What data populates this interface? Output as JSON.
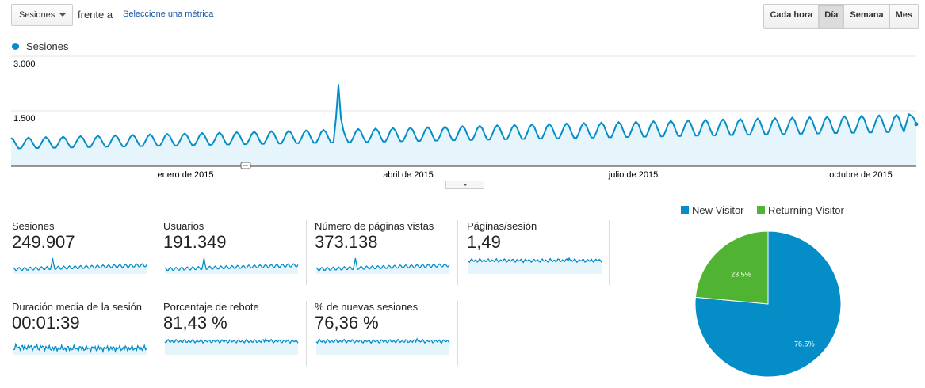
{
  "toolbar": {
    "metric_select": "Sesiones",
    "vs_label": "frente a",
    "pick_metric_link": "Seleccione una métrica",
    "granularity": [
      "Cada hora",
      "Día",
      "Semana",
      "Mes"
    ],
    "granularity_selected": "Día"
  },
  "colors": {
    "accent": "#058dc7",
    "fill": "#e6f4fb",
    "new_visitor": "#058dc7",
    "returning_visitor": "#50b432"
  },
  "chart_data": [
    {
      "type": "area",
      "series": [
        {
          "name": "Sesiones"
        }
      ],
      "yticks": [
        "3.000",
        "1.500"
      ],
      "ylim": [
        0,
        3000
      ],
      "xticks": [
        "enero de 2015",
        "abril de 2015",
        "julio de 2015",
        "octubre de 2015"
      ],
      "x_start": "2014-11-18",
      "x_end": "2015-11-18",
      "base_start": 620,
      "base_end": 1170,
      "weekly_amplitude": 190,
      "spike": {
        "date": "2015-03-30",
        "value": 2220
      },
      "end_values": [
        1190,
        1420,
        1380,
        1310,
        1150
      ],
      "grid": true
    },
    {
      "type": "pie",
      "slices": [
        {
          "name": "New Visitor",
          "value": 76.5,
          "label": "76.5%"
        },
        {
          "name": "Returning Visitor",
          "value": 23.5,
          "label": "23.5%"
        }
      ],
      "legend": "top"
    }
  ],
  "scorecards": [
    {
      "label": "Sesiones",
      "value": "249.907",
      "spark": "weekly-spike"
    },
    {
      "label": "Usuarios",
      "value": "191.349",
      "spark": "weekly-spike"
    },
    {
      "label": "Número de páginas vistas",
      "value": "373.138",
      "spark": "weekly-spike"
    },
    {
      "label": "Páginas/sesión",
      "value": "1,49",
      "spark": "flat-high"
    },
    {
      "label": "Duración media de la sesión",
      "value": "00:01:39",
      "spark": "noisy-low"
    },
    {
      "label": "Porcentaje de rebote",
      "value": "81,43 %",
      "spark": "flat-high"
    },
    {
      "label": "% de nuevas sesiones",
      "value": "76,36 %",
      "spark": "flat-high"
    }
  ]
}
